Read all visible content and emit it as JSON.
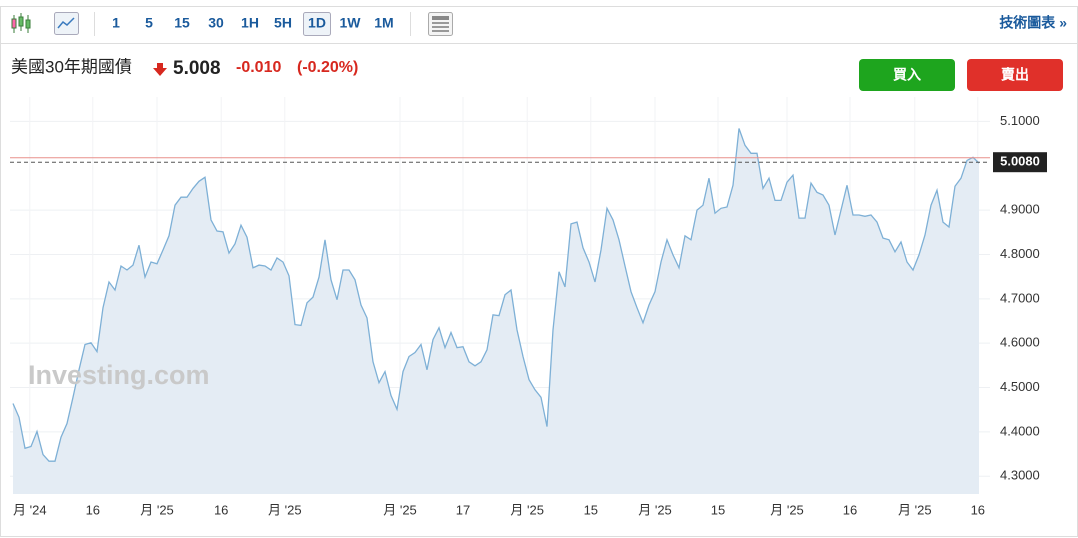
{
  "toolbar": {
    "intervals": [
      "1",
      "5",
      "15",
      "30",
      "1H",
      "5H",
      "1D",
      "1W",
      "1M"
    ],
    "active_interval": 6,
    "link": "技術圖表 »"
  },
  "header": {
    "name": "美國30年期國債",
    "price": "5.008",
    "change": "-0.010",
    "change_pct": "(-0.20%)"
  },
  "buttons": {
    "buy": "買入",
    "sell": "賣出"
  },
  "watermark": "Investing.com",
  "chart_data": {
    "type": "area",
    "color": "#7eb0d6",
    "fill": "#e4ecf4",
    "grid": true,
    "xlim": [
      0,
      161
    ],
    "xticks": [
      {
        "value": 2.8,
        "label": "月 '24"
      },
      {
        "value": 13.3,
        "label": "16"
      },
      {
        "value": 24,
        "label": "月 '25"
      },
      {
        "value": 34.7,
        "label": "16"
      },
      {
        "value": 45.3,
        "label": "月 '25"
      },
      {
        "value": 64.5,
        "label": "月 '25"
      },
      {
        "value": 75,
        "label": "17"
      },
      {
        "value": 85.7,
        "label": "月 '25"
      },
      {
        "value": 96.3,
        "label": "15"
      },
      {
        "value": 107,
        "label": "月 '25"
      },
      {
        "value": 117.5,
        "label": "15"
      },
      {
        "value": 129,
        "label": "月 '25"
      },
      {
        "value": 139.5,
        "label": "16"
      },
      {
        "value": 150.3,
        "label": "月 '25"
      },
      {
        "value": 160.8,
        "label": "16"
      }
    ],
    "ylim": [
      4.26,
      5.155
    ],
    "yticks": [
      {
        "value": 4.3,
        "label": "4.3000"
      },
      {
        "value": 4.4,
        "label": "4.4000"
      },
      {
        "value": 4.5,
        "label": "4.5000"
      },
      {
        "value": 4.6,
        "label": "4.6000"
      },
      {
        "value": 4.7,
        "label": "4.7000"
      },
      {
        "value": 4.8,
        "label": "4.8000"
      },
      {
        "value": 4.9,
        "label": "4.9000"
      },
      {
        "value": 5.1,
        "label": "5.1000"
      }
    ],
    "current": {
      "value": 5.008,
      "label": "5.0080"
    },
    "reference_line": 5.018,
    "values": [
      4.464,
      4.433,
      4.363,
      4.367,
      4.401,
      4.349,
      4.334,
      4.334,
      4.388,
      4.419,
      4.478,
      4.54,
      4.597,
      4.601,
      4.581,
      4.68,
      4.738,
      4.72,
      4.774,
      4.765,
      4.776,
      4.821,
      4.749,
      4.783,
      4.779,
      4.81,
      4.842,
      4.911,
      4.929,
      4.929,
      4.949,
      4.965,
      4.974,
      4.878,
      4.853,
      4.851,
      4.803,
      4.824,
      4.866,
      4.839,
      4.77,
      4.776,
      4.774,
      4.765,
      4.792,
      4.783,
      4.752,
      4.642,
      4.64,
      4.691,
      4.704,
      4.749,
      4.833,
      4.743,
      4.698,
      4.765,
      4.765,
      4.743,
      4.686,
      4.657,
      4.558,
      4.511,
      4.536,
      4.482,
      4.451,
      4.536,
      4.57,
      4.579,
      4.597,
      4.54,
      4.608,
      4.635,
      4.59,
      4.624,
      4.59,
      4.592,
      4.558,
      4.549,
      4.558,
      4.585,
      4.664,
      4.662,
      4.709,
      4.72,
      4.63,
      4.57,
      4.518,
      4.495,
      4.478,
      4.412,
      4.63,
      4.761,
      4.727,
      4.869,
      4.873,
      4.815,
      4.783,
      4.738,
      4.81,
      4.904,
      4.878,
      4.833,
      4.774,
      4.716,
      4.68,
      4.646,
      4.686,
      4.716,
      4.783,
      4.833,
      4.799,
      4.77,
      4.842,
      4.833,
      4.9,
      4.911,
      4.972,
      4.893,
      4.904,
      4.907,
      4.956,
      5.084,
      5.046,
      5.028,
      5.028,
      4.949,
      4.972,
      4.922,
      4.922,
      4.963,
      4.979,
      4.882,
      4.882,
      4.961,
      4.94,
      4.934,
      4.911,
      4.844,
      4.9,
      4.956,
      4.889,
      4.889,
      4.886,
      4.889,
      4.873,
      4.837,
      4.833,
      4.806,
      4.828,
      4.783,
      4.765,
      4.799,
      4.844,
      4.911,
      4.945,
      4.873,
      4.862,
      4.954,
      4.972,
      5.012,
      5.019,
      5.006
    ]
  }
}
